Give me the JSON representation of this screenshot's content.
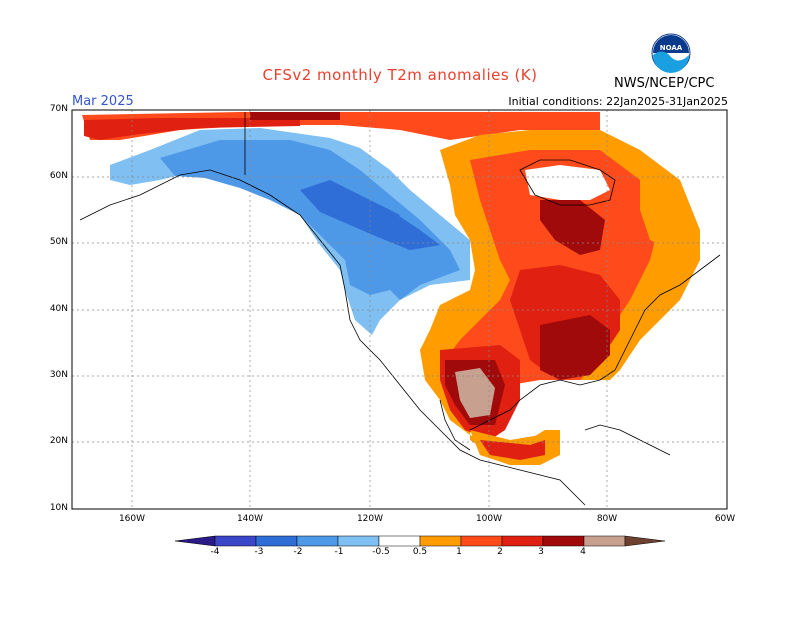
{
  "header": {
    "title": "CFSv2 monthly T2m anomalies (K)",
    "org": "NWS/NCEP/CPC",
    "month": "Mar 2025",
    "init": "Initial conditions: 22Jan2025-31Jan2025",
    "logo_text": "NOAA"
  },
  "lat_labels": [
    "70N",
    "60N",
    "50N",
    "40N",
    "30N",
    "20N",
    "10N"
  ],
  "lon_labels": [
    "160W",
    "140W",
    "120W",
    "100W",
    "80W",
    "60W"
  ],
  "colorbar": {
    "labels": [
      "-4",
      "-3",
      "-2",
      "-1",
      "-0.5",
      "0.5",
      "1",
      "2",
      "3",
      "4"
    ],
    "colors": [
      "#2a1a88",
      "#3c46c8",
      "#2e6ed6",
      "#4e98e8",
      "#7fbff2",
      "#ffffff",
      "#ff9c00",
      "#ff4a1c",
      "#e02010",
      "#a00a0a",
      "#c8a090",
      "#6e4030"
    ]
  },
  "colors": {
    "land_neutral": "#ffffff",
    "coast": "#000000",
    "grid": "#888888",
    "light_blue": "#7fbff2",
    "blue": "#4e98e8",
    "mid_blue": "#2e6ed6",
    "orange": "#ff9c00",
    "red_orange": "#ff4a1c",
    "red": "#e02010",
    "dark_red": "#a00a0a",
    "tan": "#c8a090"
  }
}
